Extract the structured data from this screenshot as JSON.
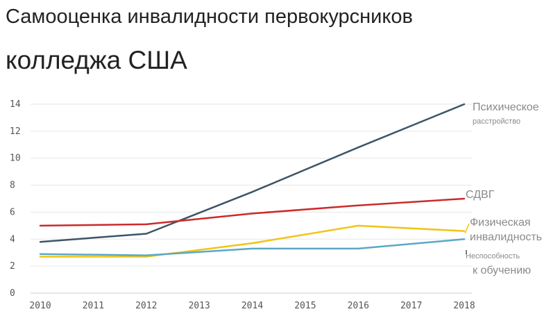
{
  "chart_data": {
    "type": "line",
    "title_line1": "Самооценка инвалидности первокурсников",
    "title_line2": "колледжа США",
    "xlabel": "",
    "ylabel": "",
    "x": [
      2010,
      2011,
      2012,
      2013,
      2014,
      2015,
      2016,
      2017,
      2018
    ],
    "x_ticks": [
      "2010",
      "2011",
      "2012",
      "2013",
      "2014",
      "2015",
      "2016",
      "2017",
      "2018"
    ],
    "y_ticks": [
      "0",
      "2",
      "4",
      "6",
      "8",
      "10",
      "12",
      "14"
    ],
    "xlim": [
      2010,
      2018
    ],
    "ylim": [
      0,
      14
    ],
    "grid": true,
    "series": [
      {
        "name": "Психическое расстройство",
        "label_lines": [
          "Психическое",
          "расстройство"
        ],
        "color": "#3d5566",
        "points": [
          [
            2010,
            3.8
          ],
          [
            2012,
            4.4
          ],
          [
            2014,
            7.5
          ],
          [
            2016,
            10.8
          ],
          [
            2018,
            14.0
          ]
        ]
      },
      {
        "name": "СДВГ",
        "label_lines": [
          "СДВГ"
        ],
        "color": "#cc2a2a",
        "points": [
          [
            2010,
            5.0
          ],
          [
            2012,
            5.1
          ],
          [
            2014,
            5.9
          ],
          [
            2016,
            6.5
          ],
          [
            2018,
            7.0
          ]
        ]
      },
      {
        "name": "Физическая инвалидность",
        "label_lines": [
          "Физическая",
          "инвалидность"
        ],
        "color": "#f0c419",
        "points": [
          [
            2010,
            2.7
          ],
          [
            2012,
            2.7
          ],
          [
            2014,
            3.7
          ],
          [
            2016,
            5.0
          ],
          [
            2018,
            4.6
          ]
        ]
      },
      {
        "name": "Неспособность к обучению",
        "label_lines": [
          "Неспособность",
          "к обучению"
        ],
        "color": "#5ba8c4",
        "points": [
          [
            2010,
            2.9
          ],
          [
            2012,
            2.8
          ],
          [
            2014,
            3.3
          ],
          [
            2016,
            3.3
          ],
          [
            2018,
            4.0
          ]
        ]
      }
    ]
  }
}
